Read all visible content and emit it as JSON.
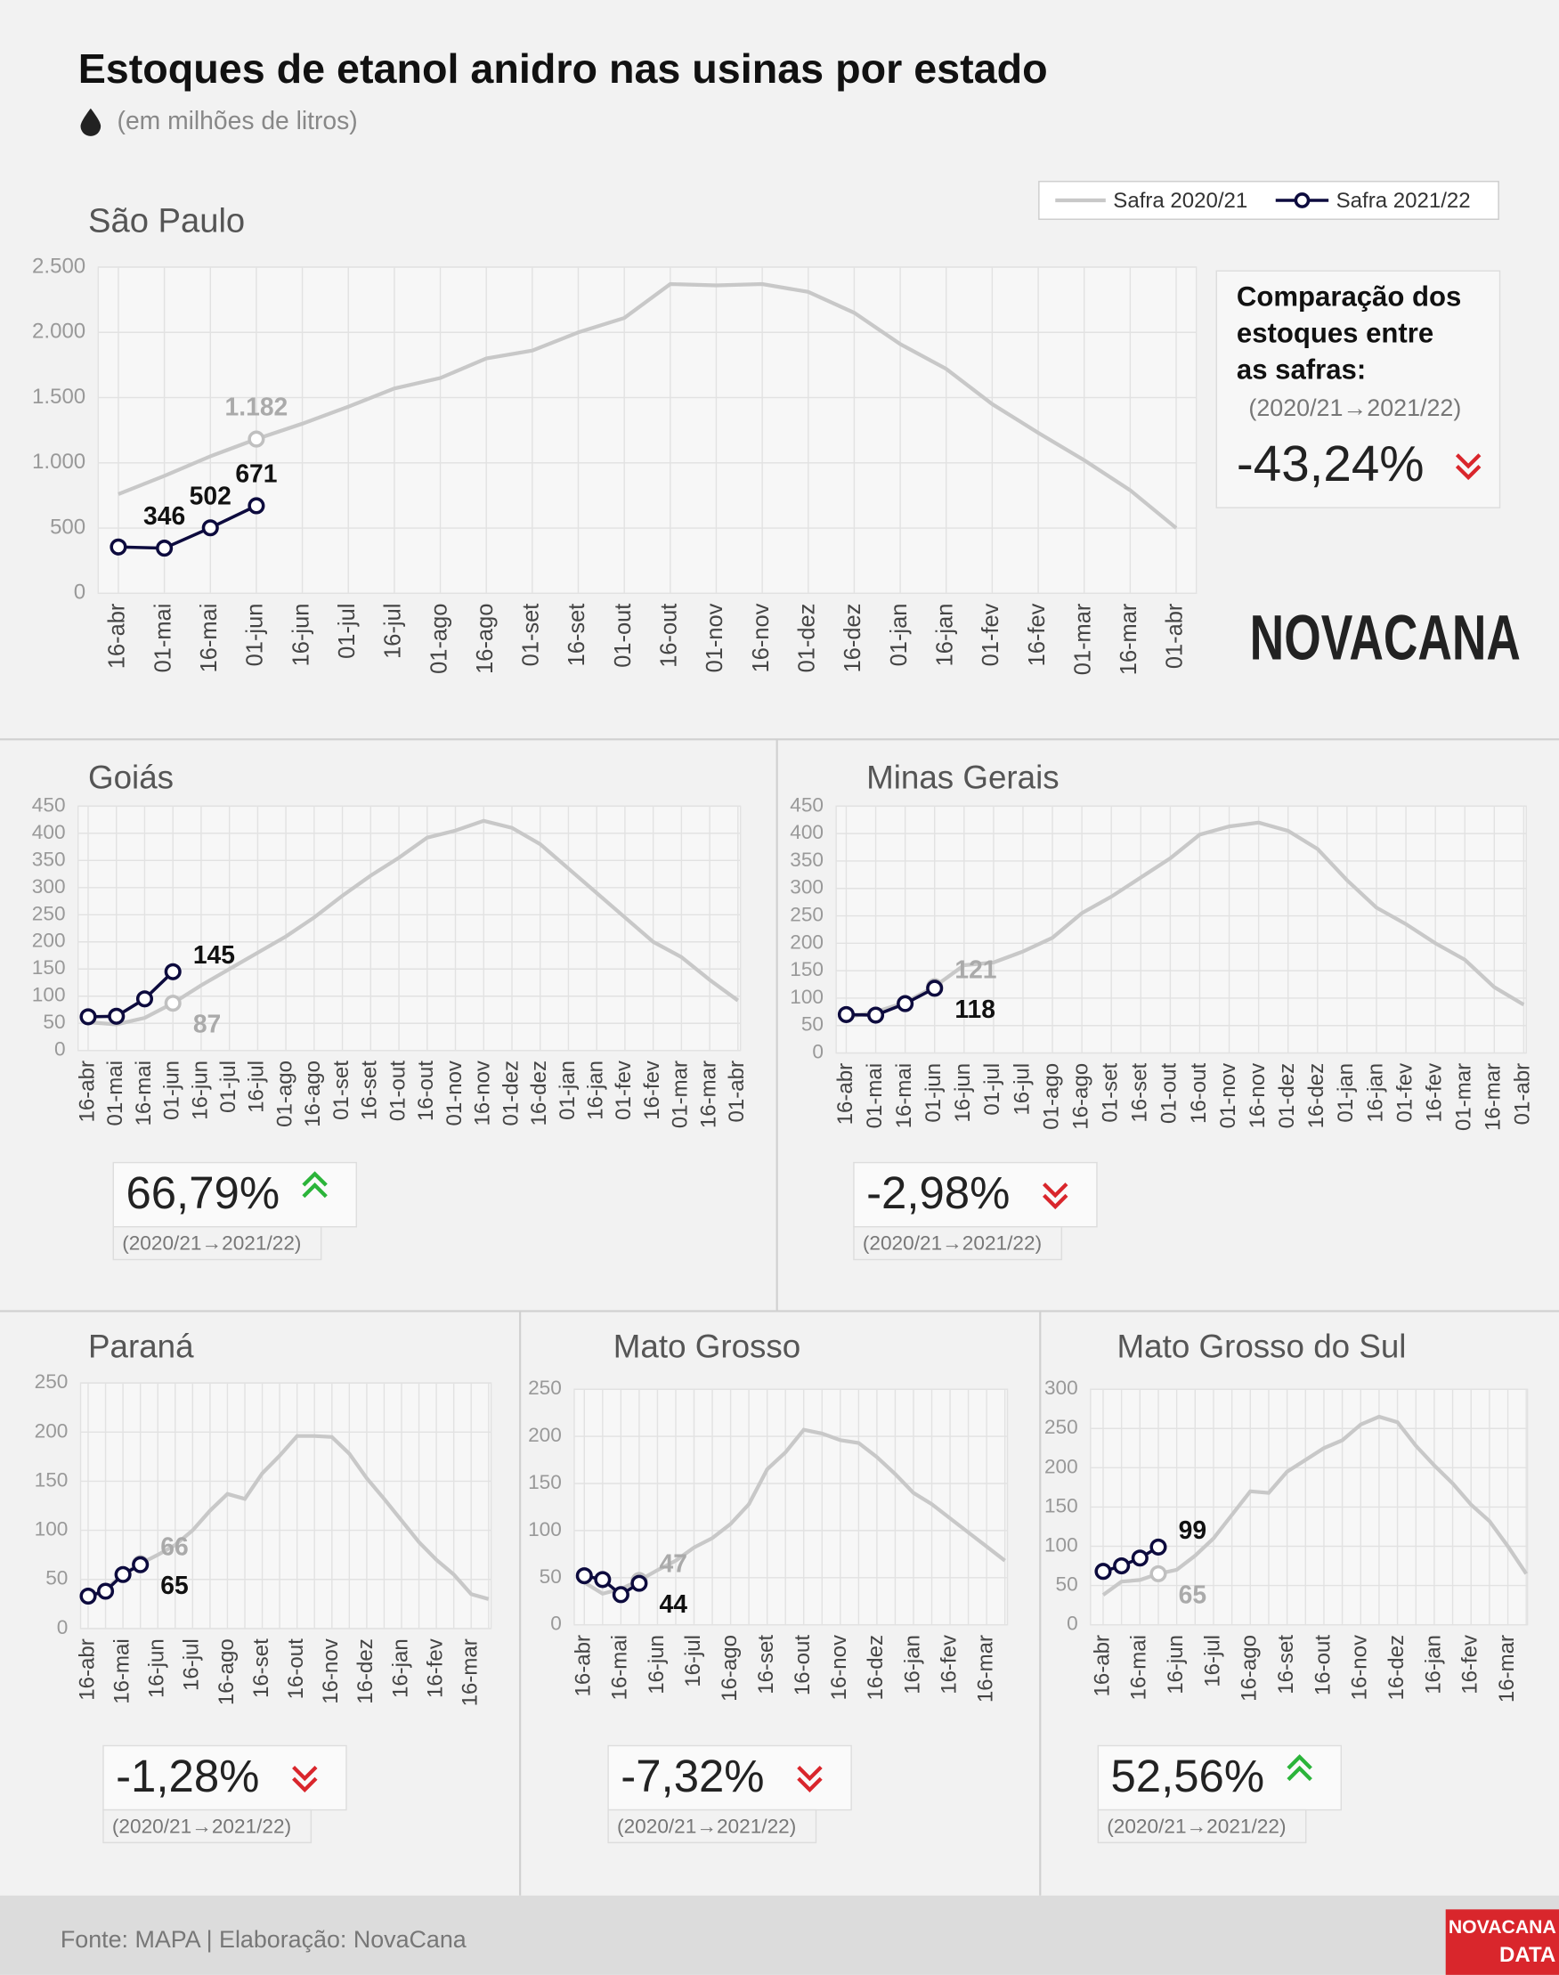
{
  "header": {
    "title": "Estoques de etanol anidro nas usinas por estado",
    "subtitle": "(em milhões de litros)"
  },
  "brand": "NOVACANA",
  "footer": {
    "source": "Fonte: MAPA  | Elaboração: NovaCana",
    "logo": [
      "NOVACANA",
      "DATA"
    ]
  },
  "chart_data": [
    {
      "type": "line",
      "title": "São Paulo",
      "grid": true,
      "legend": "top-right",
      "categories": [
        "16-abr",
        "01-mai",
        "16-mai",
        "01-jun",
        "16-jun",
        "01-jul",
        "16-jul",
        "01-ago",
        "16-ago",
        "01-set",
        "16-set",
        "01-out",
        "16-out",
        "01-nov",
        "16-nov",
        "01-dez",
        "16-dez",
        "01-jan",
        "16-jan",
        "01-fev",
        "16-fev",
        "01-mar",
        "16-mar",
        "01-abr"
      ],
      "series": [
        {
          "name": "Safra 2020/21",
          "color": "#c8c8c8",
          "values": [
            760,
            900,
            1050,
            1182,
            1300,
            1430,
            1570,
            1650,
            1800,
            1860,
            2000,
            2110,
            2370,
            2360,
            2370,
            2310,
            2150,
            1910,
            1720,
            1450,
            1230,
            1020,
            790,
            500
          ],
          "value_labels": [
            null,
            null,
            null,
            "1.182",
            null,
            null,
            null,
            null,
            null,
            null,
            null,
            null,
            null,
            null,
            null,
            null,
            null,
            null,
            null,
            null,
            null,
            null,
            null,
            null
          ]
        },
        {
          "name": "Safra 2021/22",
          "color": "#0d0b3e",
          "values": [
            355,
            346,
            502,
            671,
            null,
            null,
            null,
            null,
            null,
            null,
            null,
            null,
            null,
            null,
            null,
            null,
            null,
            null,
            null,
            null,
            null,
            null,
            null,
            null
          ],
          "value_labels": [
            null,
            "346",
            "502",
            "671",
            null,
            null,
            null,
            null,
            null,
            null,
            null,
            null,
            null,
            null,
            null,
            null,
            null,
            null,
            null,
            null,
            null,
            null,
            null,
            null
          ]
        }
      ],
      "ylim": [
        0,
        2500
      ],
      "yticks": [
        0,
        500,
        {
          "value": 1000,
          "label": "1.000"
        },
        {
          "value": 1500,
          "label": "1.500"
        },
        {
          "value": 2000,
          "label": "2.000"
        },
        {
          "value": 2500,
          "label": "2.500"
        }
      ],
      "comparison": {
        "title": [
          "Comparação dos",
          "estoques entre",
          "as safras:"
        ],
        "label": "(2020/21→2021/22)",
        "change": "-43,24%",
        "trend": "down"
      }
    },
    {
      "type": "line",
      "title": "Goiás",
      "grid": true,
      "categories": [
        "16-abr",
        "01-mai",
        "16-mai",
        "01-jun",
        "16-jun",
        "01-jul",
        "16-jul",
        "01-ago",
        "16-ago",
        "01-set",
        "16-set",
        "01-out",
        "16-out",
        "01-nov",
        "16-nov",
        "01-dez",
        "16-dez",
        "01-jan",
        "16-jan",
        "01-fev",
        "16-fev",
        "01-mar",
        "16-mar",
        "01-abr"
      ],
      "series": [
        {
          "name": "Safra 2020/21",
          "color": "#c8c8c8",
          "values": [
            52,
            48,
            60,
            87,
            120,
            150,
            180,
            210,
            245,
            285,
            322,
            355,
            392,
            405,
            423,
            410,
            380,
            335,
            290,
            245,
            200,
            172,
            130,
            92
          ],
          "value_labels": [
            null,
            null,
            null,
            "87",
            null,
            null,
            null,
            null,
            null,
            null,
            null,
            null,
            null,
            null,
            null,
            null,
            null,
            null,
            null,
            null,
            null,
            null,
            null,
            null
          ]
        },
        {
          "name": "Safra 2021/22",
          "color": "#0d0b3e",
          "values": [
            62,
            63,
            95,
            145,
            null,
            null,
            null,
            null,
            null,
            null,
            null,
            null,
            null,
            null,
            null,
            null,
            null,
            null,
            null,
            null,
            null,
            null,
            null,
            null
          ],
          "value_labels": [
            null,
            null,
            null,
            "145",
            null,
            null,
            null,
            null,
            null,
            null,
            null,
            null,
            null,
            null,
            null,
            null,
            null,
            null,
            null,
            null,
            null,
            null,
            null,
            null
          ]
        }
      ],
      "ylim": [
        0,
        450
      ],
      "yticks": [
        0,
        50,
        100,
        150,
        200,
        250,
        300,
        350,
        400,
        450
      ],
      "comparison": {
        "label": "(2020/21→2021/22)",
        "change": "66,79%",
        "trend": "up"
      }
    },
    {
      "type": "line",
      "title": "Minas Gerais",
      "grid": true,
      "categories": [
        "16-abr",
        "01-mai",
        "16-mai",
        "01-jun",
        "16-jun",
        "01-jul",
        "16-jul",
        "01-ago",
        "16-ago",
        "01-set",
        "16-set",
        "01-out",
        "16-out",
        "01-nov",
        "16-nov",
        "01-dez",
        "16-dez",
        "01-jan",
        "16-jan",
        "01-fev",
        "16-fev",
        "01-mar",
        "16-mar",
        "01-abr"
      ],
      "series": [
        {
          "name": "Safra 2020/21",
          "color": "#c8c8c8",
          "values": [
            65,
            75,
            92,
            121,
            160,
            165,
            185,
            210,
            255,
            285,
            320,
            355,
            398,
            413,
            420,
            405,
            372,
            315,
            265,
            235,
            200,
            170,
            120,
            88
          ],
          "value_labels": [
            null,
            null,
            null,
            "121",
            null,
            null,
            null,
            null,
            null,
            null,
            null,
            null,
            null,
            null,
            null,
            null,
            null,
            null,
            null,
            null,
            null,
            null,
            null,
            null
          ]
        },
        {
          "name": "Safra 2021/22",
          "color": "#0d0b3e",
          "values": [
            70,
            69,
            90,
            118,
            null,
            null,
            null,
            null,
            null,
            null,
            null,
            null,
            null,
            null,
            null,
            null,
            null,
            null,
            null,
            null,
            null,
            null,
            null,
            null
          ],
          "value_labels": [
            null,
            null,
            null,
            "118",
            null,
            null,
            null,
            null,
            null,
            null,
            null,
            null,
            null,
            null,
            null,
            null,
            null,
            null,
            null,
            null,
            null,
            null,
            null,
            null
          ]
        }
      ],
      "ylim": [
        0,
        450
      ],
      "yticks": [
        0,
        50,
        100,
        150,
        200,
        250,
        300,
        350,
        400,
        450
      ],
      "comparison": {
        "label": "(2020/21→2021/22)",
        "change": "-2,98%",
        "trend": "down"
      }
    },
    {
      "type": "line",
      "title": "Paraná",
      "grid": true,
      "categories": [
        "16-abr",
        null,
        "16-mai",
        null,
        "16-jun",
        null,
        "16-jul",
        null,
        "16-ago",
        null,
        "16-set",
        null,
        "16-out",
        null,
        "16-nov",
        null,
        "16-dez",
        null,
        "16-jan",
        null,
        "16-fev",
        null,
        "16-mar",
        null
      ],
      "series": [
        {
          "name": "Safra 2020/21",
          "color": "#c8c8c8",
          "values": [
            32,
            40,
            55,
            66,
            75,
            85,
            100,
            120,
            137,
            132,
            158,
            176,
            196,
            196,
            195,
            178,
            153,
            132,
            110,
            88,
            70,
            55,
            35,
            30
          ],
          "value_labels": [
            null,
            null,
            null,
            "66",
            null,
            null,
            null,
            null,
            null,
            null,
            null,
            null,
            null,
            null,
            null,
            null,
            null,
            null,
            null,
            null,
            null,
            null,
            null,
            null
          ]
        },
        {
          "name": "Safra 2021/22",
          "color": "#0d0b3e",
          "values": [
            33,
            38,
            55,
            65,
            null,
            null,
            null,
            null,
            null,
            null,
            null,
            null,
            null,
            null,
            null,
            null,
            null,
            null,
            null,
            null,
            null,
            null,
            null,
            null
          ],
          "value_labels": [
            null,
            null,
            null,
            "65",
            null,
            null,
            null,
            null,
            null,
            null,
            null,
            null,
            null,
            null,
            null,
            null,
            null,
            null,
            null,
            null,
            null,
            null,
            null,
            null
          ]
        }
      ],
      "ylim": [
        0,
        250
      ],
      "yticks": [
        0,
        50,
        100,
        150,
        200,
        250
      ],
      "comparison": {
        "label": "(2020/21→2021/22)",
        "change": "-1,28%",
        "trend": "down"
      }
    },
    {
      "type": "line",
      "title": "Mato Grosso",
      "grid": true,
      "categories": [
        "16-abr",
        null,
        "16-mai",
        null,
        "16-jun",
        null,
        "16-jul",
        null,
        "16-ago",
        null,
        "16-set",
        null,
        "16-out",
        null,
        "16-nov",
        null,
        "16-dez",
        null,
        "16-jan",
        null,
        "16-fev",
        null,
        "16-mar",
        null
      ],
      "series": [
        {
          "name": "Safra 2020/21",
          "color": "#c8c8c8",
          "values": [
            45,
            33,
            38,
            47,
            58,
            68,
            82,
            92,
            107,
            128,
            165,
            183,
            207,
            203,
            196,
            193,
            178,
            160,
            140,
            128,
            113,
            98,
            83,
            68
          ],
          "value_labels": [
            null,
            null,
            null,
            "47",
            null,
            null,
            null,
            null,
            null,
            null,
            null,
            null,
            null,
            null,
            null,
            null,
            null,
            null,
            null,
            null,
            null,
            null,
            null,
            null
          ]
        },
        {
          "name": "Safra 2021/22",
          "color": "#0d0b3e",
          "values": [
            52,
            48,
            32,
            44,
            null,
            null,
            null,
            null,
            null,
            null,
            null,
            null,
            null,
            null,
            null,
            null,
            null,
            null,
            null,
            null,
            null,
            null,
            null,
            null
          ],
          "value_labels": [
            null,
            null,
            null,
            "44",
            null,
            null,
            null,
            null,
            null,
            null,
            null,
            null,
            null,
            null,
            null,
            null,
            null,
            null,
            null,
            null,
            null,
            null,
            null,
            null
          ]
        }
      ],
      "ylim": [
        0,
        250
      ],
      "yticks": [
        0,
        50,
        100,
        150,
        200,
        250
      ],
      "comparison": {
        "label": "(2020/21→2021/22)",
        "change": "-7,32%",
        "trend": "down"
      }
    },
    {
      "type": "line",
      "title": "Mato Grosso do Sul",
      "grid": true,
      "categories": [
        "16-abr",
        null,
        "16-mai",
        null,
        "16-jun",
        null,
        "16-jul",
        null,
        "16-ago",
        null,
        "16-set",
        null,
        "16-out",
        null,
        "16-nov",
        null,
        "16-dez",
        null,
        "16-jan",
        null,
        "16-fev",
        null,
        "16-mar",
        null
      ],
      "series": [
        {
          "name": "Safra 2020/21",
          "color": "#c8c8c8",
          "values": [
            38,
            55,
            57,
            65,
            70,
            88,
            110,
            140,
            170,
            168,
            195,
            210,
            225,
            235,
            255,
            265,
            258,
            228,
            203,
            180,
            153,
            132,
            100,
            65
          ],
          "value_labels": [
            null,
            null,
            null,
            "65",
            null,
            null,
            null,
            null,
            null,
            null,
            null,
            null,
            null,
            null,
            null,
            null,
            null,
            null,
            null,
            null,
            null,
            null,
            null,
            null
          ]
        },
        {
          "name": "Safra 2021/22",
          "color": "#0d0b3e",
          "values": [
            68,
            75,
            85,
            99,
            null,
            null,
            null,
            null,
            null,
            null,
            null,
            null,
            null,
            null,
            null,
            null,
            null,
            null,
            null,
            null,
            null,
            null,
            null,
            null
          ],
          "value_labels": [
            null,
            null,
            null,
            "99",
            null,
            null,
            null,
            null,
            null,
            null,
            null,
            null,
            null,
            null,
            null,
            null,
            null,
            null,
            null,
            null,
            null,
            null,
            null,
            null
          ]
        }
      ],
      "ylim": [
        0,
        300
      ],
      "yticks": [
        0,
        50,
        100,
        150,
        200,
        250,
        300
      ],
      "comparison": {
        "label": "(2020/21→2021/22)",
        "change": "52,56%",
        "trend": "up"
      }
    }
  ]
}
